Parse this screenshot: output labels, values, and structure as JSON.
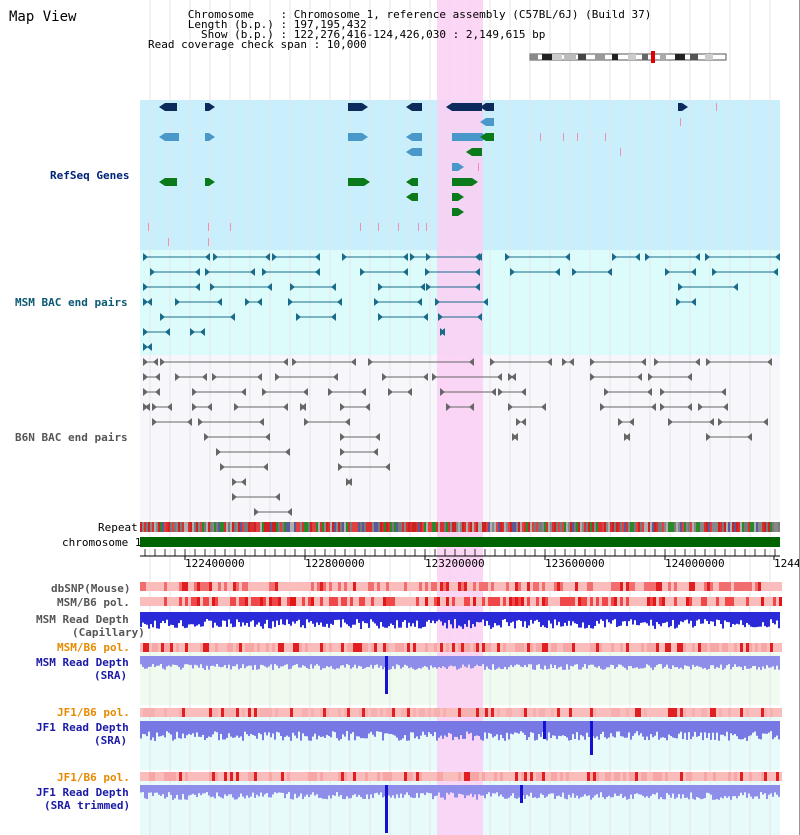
{
  "page": {
    "title": "Map View"
  },
  "info": {
    "chromosome_key": "Chromosome",
    "chromosome_val": "Chromosome 1, reference assembly (C57BL/6J) (Build 37)",
    "length_key": "Length (b.p.)",
    "length_val": "197,195,432",
    "show_key": "Show (b.p.)",
    "show_val": "122,276,416-124,426,030 : 2,149,615 bp",
    "coverage_key": "Read coverage check span",
    "coverage_val": "10,000"
  },
  "tracks": {
    "refseq": "RefSeq Genes",
    "msm_bac": "MSM BAC end pairs",
    "b6n_bac": "B6N BAC end pairs",
    "repeat": "Repeat",
    "chromosome": "chromosome 1",
    "dbsnp": "dbSNP(Mouse)",
    "msm_b6_pol_1": "MSM/B6 pol.",
    "msm_depth_cap_1": "MSM Read Depth",
    "msm_depth_cap_2": "(Capillary)",
    "msm_b6_pol_2": "MSM/B6 pol.",
    "msm_depth_sra_1": "MSM Read Depth",
    "msm_depth_sra_2": "(SRA)",
    "jf1_b6_pol_1": "JF1/B6 pol.",
    "jf1_depth_sra_1": "JF1 Read Depth",
    "jf1_depth_sra_2": "(SRA)",
    "jf1_b6_pol_2": "JF1/B6 pol.",
    "jf1_depth_trim_1": "JF1 Read Depth",
    "jf1_depth_trim_2": "(SRA trimmed)"
  },
  "axis": {
    "ticks": [
      "122400000",
      "122800000",
      "123200000",
      "123600000",
      "124000000",
      "1244"
    ]
  },
  "colors": {
    "refseq_bg": "#c9eefc",
    "msm_bac_bg": "#dcfcfc",
    "highlight": "#fccff3",
    "chromosome_bar": "#006400",
    "bac_line_msm": "#1a6b8a",
    "bac_line_b6n": "#666666"
  }
}
